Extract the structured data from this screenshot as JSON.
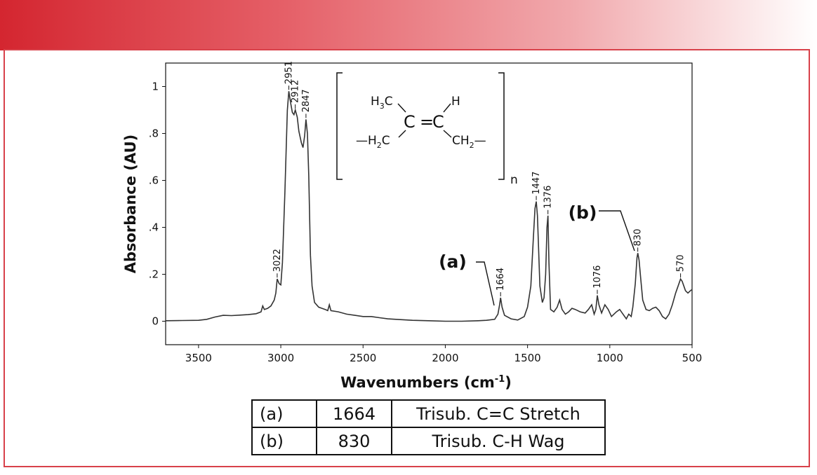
{
  "chart_data": {
    "type": "line",
    "xlabel": "Wavenumbers (cm-1)",
    "xlabel_main": "Wavenumbers (cm",
    "xlabel_sup": "-1",
    "xlabel_close": ")",
    "ylabel": "Absorbance (AU)",
    "xlim": [
      3700,
      500
    ],
    "ylim": [
      -0.1,
      1.1
    ],
    "x_ticks": [
      {
        "value": 3500,
        "label": "3500"
      },
      {
        "value": 3000,
        "label": "3000"
      },
      {
        "value": 2500,
        "label": "2500"
      },
      {
        "value": 2000,
        "label": "2000"
      },
      {
        "value": 1500,
        "label": "1500"
      },
      {
        "value": 1000,
        "label": "1000"
      },
      {
        "value": 500,
        "label": "500"
      }
    ],
    "y_ticks": [
      {
        "value": 0,
        "label": "0"
      },
      {
        "value": 0.2,
        "label": ".2"
      },
      {
        "value": 0.4,
        "label": ".4"
      },
      {
        "value": 0.6,
        "label": ".6"
      },
      {
        "value": 0.8,
        "label": ".8"
      },
      {
        "value": 1.0,
        "label": "1"
      }
    ],
    "grid": false,
    "series": [
      {
        "color": "#333333",
        "points": [
          [
            3700,
            0.002
          ],
          [
            3600,
            0.003
          ],
          [
            3500,
            0.004
          ],
          [
            3450,
            0.008
          ],
          [
            3400,
            0.018
          ],
          [
            3350,
            0.025
          ],
          [
            3300,
            0.024
          ],
          [
            3250,
            0.026
          ],
          [
            3200,
            0.028
          ],
          [
            3150,
            0.032
          ],
          [
            3120,
            0.04
          ],
          [
            3110,
            0.065
          ],
          [
            3100,
            0.05
          ],
          [
            3080,
            0.055
          ],
          [
            3060,
            0.065
          ],
          [
            3040,
            0.09
          ],
          [
            3030,
            0.12
          ],
          [
            3022,
            0.18
          ],
          [
            3010,
            0.16
          ],
          [
            3000,
            0.155
          ],
          [
            2990,
            0.25
          ],
          [
            2975,
            0.55
          ],
          [
            2960,
            0.9
          ],
          [
            2951,
            0.98
          ],
          [
            2940,
            0.93
          ],
          [
            2930,
            0.89
          ],
          [
            2920,
            0.88
          ],
          [
            2912,
            0.9
          ],
          [
            2900,
            0.87
          ],
          [
            2890,
            0.81
          ],
          [
            2875,
            0.76
          ],
          [
            2865,
            0.74
          ],
          [
            2855,
            0.79
          ],
          [
            2847,
            0.86
          ],
          [
            2838,
            0.8
          ],
          [
            2830,
            0.62
          ],
          [
            2820,
            0.28
          ],
          [
            2810,
            0.15
          ],
          [
            2795,
            0.08
          ],
          [
            2770,
            0.06
          ],
          [
            2750,
            0.055
          ],
          [
            2730,
            0.05
          ],
          [
            2715,
            0.045
          ],
          [
            2705,
            0.07
          ],
          [
            2695,
            0.045
          ],
          [
            2650,
            0.04
          ],
          [
            2600,
            0.03
          ],
          [
            2550,
            0.025
          ],
          [
            2500,
            0.02
          ],
          [
            2450,
            0.02
          ],
          [
            2400,
            0.015
          ],
          [
            2350,
            0.01
          ],
          [
            2300,
            0.008
          ],
          [
            2200,
            0.004
          ],
          [
            2100,
            0.002
          ],
          [
            2000,
            0.0
          ],
          [
            1900,
            0.0
          ],
          [
            1800,
            0.002
          ],
          [
            1750,
            0.004
          ],
          [
            1700,
            0.008
          ],
          [
            1680,
            0.03
          ],
          [
            1670,
            0.07
          ],
          [
            1664,
            0.1
          ],
          [
            1655,
            0.06
          ],
          [
            1640,
            0.025
          ],
          [
            1600,
            0.01
          ],
          [
            1560,
            0.005
          ],
          [
            1520,
            0.02
          ],
          [
            1500,
            0.06
          ],
          [
            1480,
            0.15
          ],
          [
            1465,
            0.35
          ],
          [
            1455,
            0.48
          ],
          [
            1447,
            0.51
          ],
          [
            1440,
            0.45
          ],
          [
            1425,
            0.15
          ],
          [
            1410,
            0.08
          ],
          [
            1400,
            0.1
          ],
          [
            1390,
            0.2
          ],
          [
            1382,
            0.4
          ],
          [
            1376,
            0.45
          ],
          [
            1370,
            0.25
          ],
          [
            1360,
            0.05
          ],
          [
            1340,
            0.04
          ],
          [
            1320,
            0.06
          ],
          [
            1305,
            0.09
          ],
          [
            1290,
            0.05
          ],
          [
            1270,
            0.03
          ],
          [
            1250,
            0.04
          ],
          [
            1230,
            0.055
          ],
          [
            1210,
            0.05
          ],
          [
            1180,
            0.04
          ],
          [
            1150,
            0.035
          ],
          [
            1130,
            0.05
          ],
          [
            1110,
            0.07
          ],
          [
            1095,
            0.03
          ],
          [
            1085,
            0.05
          ],
          [
            1076,
            0.11
          ],
          [
            1066,
            0.07
          ],
          [
            1050,
            0.035
          ],
          [
            1030,
            0.07
          ],
          [
            1010,
            0.05
          ],
          [
            990,
            0.02
          ],
          [
            960,
            0.04
          ],
          [
            940,
            0.05
          ],
          [
            920,
            0.03
          ],
          [
            900,
            0.01
          ],
          [
            885,
            0.03
          ],
          [
            870,
            0.02
          ],
          [
            860,
            0.06
          ],
          [
            845,
            0.16
          ],
          [
            835,
            0.27
          ],
          [
            830,
            0.29
          ],
          [
            822,
            0.26
          ],
          [
            812,
            0.18
          ],
          [
            800,
            0.09
          ],
          [
            780,
            0.05
          ],
          [
            760,
            0.045
          ],
          [
            740,
            0.055
          ],
          [
            720,
            0.06
          ],
          [
            700,
            0.045
          ],
          [
            680,
            0.02
          ],
          [
            660,
            0.01
          ],
          [
            640,
            0.03
          ],
          [
            620,
            0.07
          ],
          [
            600,
            0.12
          ],
          [
            585,
            0.15
          ],
          [
            570,
            0.18
          ],
          [
            560,
            0.17
          ],
          [
            550,
            0.15
          ],
          [
            540,
            0.13
          ],
          [
            525,
            0.12
          ],
          [
            510,
            0.13
          ],
          [
            500,
            0.135
          ]
        ]
      }
    ],
    "peak_labels": [
      {
        "x": 3022,
        "y": 0.18,
        "label": "3022"
      },
      {
        "x": 2951,
        "y": 0.98,
        "label": "2951"
      },
      {
        "x": 2912,
        "y": 0.9,
        "label": "2912"
      },
      {
        "x": 2847,
        "y": 0.86,
        "label": "2847"
      },
      {
        "x": 1664,
        "y": 0.1,
        "label": "1664"
      },
      {
        "x": 1447,
        "y": 0.51,
        "label": "1447"
      },
      {
        "x": 1376,
        "y": 0.45,
        "label": "1376"
      },
      {
        "x": 1076,
        "y": 0.11,
        "label": "1076"
      },
      {
        "x": 830,
        "y": 0.29,
        "label": "830"
      },
      {
        "x": 570,
        "y": 0.18,
        "label": "570"
      }
    ],
    "callouts": [
      {
        "label": "(a)",
        "peak": 1664
      },
      {
        "label": "(b)",
        "peak": 830
      }
    ],
    "structure": {
      "ch3": "H",
      "ch3_sub": "3",
      "ch3_c": "C",
      "h": "H",
      "c1": "C",
      "c2": "C",
      "dbl": "=",
      "left_dash": "—",
      "h2c_h": "H",
      "h2c_sub": "2",
      "h2c_c": "C",
      "ch2_ch": "CH",
      "ch2_sub": "2",
      "right_dash": "—",
      "n": "n"
    }
  },
  "table": {
    "rows": [
      {
        "label": "(a)",
        "value": "1664",
        "assignment": "Trisub. C=C Stretch"
      },
      {
        "label": "(b)",
        "value": "830",
        "assignment": "Trisub. C-H Wag"
      }
    ]
  },
  "colors": {
    "banner_start": "#d42630",
    "frame": "#d8414a",
    "line": "#333333"
  }
}
